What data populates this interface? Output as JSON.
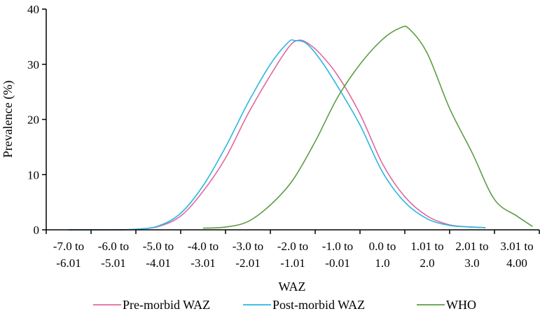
{
  "chart_data": {
    "type": "line",
    "xlabel": "WAZ",
    "ylabel": "Prevalence (%)",
    "ylim": [
      0,
      40
    ],
    "yticks": [
      0,
      10,
      20,
      30,
      40
    ],
    "grid": false,
    "legend_position": "bottom",
    "categories": [
      [
        "-7.0 to",
        "-6.01"
      ],
      [
        "-6.0 to",
        "-5.01"
      ],
      [
        "-5.0 to",
        "-4.01"
      ],
      [
        "-4.0 to",
        "-3.01"
      ],
      [
        "-3.0 to",
        "-2.01"
      ],
      [
        "-2.0 to",
        "-1.01"
      ],
      [
        "-1.0 to",
        "-0.01"
      ],
      [
        "0.0 to",
        "1.0"
      ],
      [
        "1.01 to",
        "2.0"
      ],
      [
        "2.01 to",
        "3.0"
      ],
      [
        "3.01 to",
        "4.00"
      ]
    ],
    "series": [
      {
        "name": "Pre-morbid WAZ",
        "color": "#e0689e",
        "points": [
          [
            0,
            0
          ],
          [
            1,
            0
          ],
          [
            1.5,
            0.1
          ],
          [
            2,
            0.6
          ],
          [
            2.5,
            2.5
          ],
          [
            3,
            7
          ],
          [
            3.5,
            13
          ],
          [
            4,
            21
          ],
          [
            4.5,
            28
          ],
          [
            4.9,
            33
          ],
          [
            5.1,
            34.3
          ],
          [
            5.3,
            34
          ],
          [
            5.6,
            32
          ],
          [
            6,
            28
          ],
          [
            6.5,
            21
          ],
          [
            7,
            12
          ],
          [
            7.5,
            6
          ],
          [
            8,
            2.5
          ],
          [
            8.5,
            0.9
          ],
          [
            9,
            0.5
          ],
          [
            9.3,
            0.4
          ]
        ]
      },
      {
        "name": "Post-morbid WAZ",
        "color": "#28b8e2",
        "points": [
          [
            0,
            0
          ],
          [
            1,
            0
          ],
          [
            1.5,
            0.1
          ],
          [
            2,
            0.7
          ],
          [
            2.5,
            3
          ],
          [
            3,
            8
          ],
          [
            3.5,
            15
          ],
          [
            4,
            23
          ],
          [
            4.5,
            30
          ],
          [
            4.9,
            34
          ],
          [
            5.05,
            34.3
          ],
          [
            5.3,
            33.8
          ],
          [
            5.6,
            31
          ],
          [
            6,
            26
          ],
          [
            6.5,
            19
          ],
          [
            7,
            10.5
          ],
          [
            7.5,
            5
          ],
          [
            8,
            2
          ],
          [
            8.5,
            0.8
          ],
          [
            9,
            0.5
          ],
          [
            9.3,
            0.4
          ]
        ]
      },
      {
        "name": "WHO",
        "color": "#5b9e44",
        "points": [
          [
            3,
            0.3
          ],
          [
            3.5,
            0.5
          ],
          [
            4,
            1.5
          ],
          [
            4.5,
            4.5
          ],
          [
            5,
            9
          ],
          [
            5.5,
            16
          ],
          [
            6,
            24
          ],
          [
            6.5,
            30
          ],
          [
            7,
            34.5
          ],
          [
            7.4,
            36.6
          ],
          [
            7.6,
            36.4
          ],
          [
            8,
            32
          ],
          [
            8.5,
            22
          ],
          [
            9,
            14
          ],
          [
            9.5,
            5.5
          ],
          [
            10,
            2.5
          ],
          [
            10.35,
            0.6
          ]
        ]
      }
    ]
  }
}
